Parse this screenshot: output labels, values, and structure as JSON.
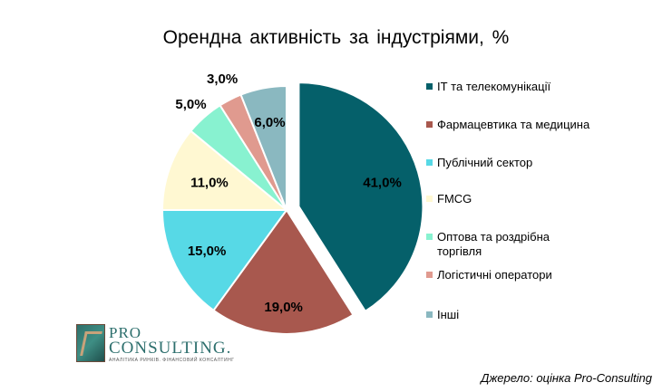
{
  "title": "Орендна активність за індустріями, %",
  "source": "Джерело: оцінка Pro-Consulting",
  "logo": {
    "line1": "PRO",
    "line2": "CONSULTING.",
    "tagline": "АНАЛІТИКА РИНКІВ. ФІНАНСОВИЙ КОНСАЛТИНГ"
  },
  "chart_data": {
    "type": "pie",
    "title": "Орендна активність за індустріями, %",
    "legend_position": "right",
    "slices": [
      {
        "name": "ІТ та телекомунікації",
        "value": 41.0,
        "label": "41,0%",
        "color": "#05606a",
        "exploded": true
      },
      {
        "name": "Фармацевтика та медицина",
        "value": 19.0,
        "label": "19,0%",
        "color": "#a8584e",
        "exploded": false
      },
      {
        "name": "Публічний сектор",
        "value": 15.0,
        "label": "15,0%",
        "color": "#57d9e6",
        "exploded": false
      },
      {
        "name": "FMCG",
        "value": 11.0,
        "label": "11,0%",
        "color": "#fff8d2",
        "exploded": false
      },
      {
        "name": "Оптова та роздрібна торгівля",
        "value": 5.0,
        "label": "5,0%",
        "color": "#88f2d0",
        "exploded": false
      },
      {
        "name": "Логістичні оператори",
        "value": 3.0,
        "label": "3,0%",
        "color": "#e09a8f",
        "exploded": false
      },
      {
        "name": "Інші",
        "value": 6.0,
        "label": "6,0%",
        "color": "#8ab8c0",
        "exploded": false
      }
    ]
  }
}
